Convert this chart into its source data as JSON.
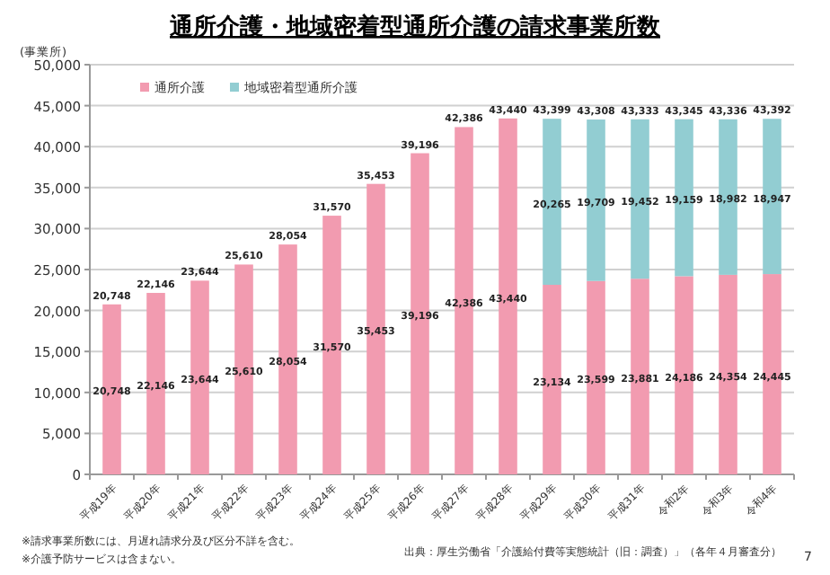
{
  "chart_data": {
    "type": "bar",
    "title": "通所介護・地域密着型通所介護の請求事業所数",
    "ylabel": "(事業所)",
    "categories": [
      "平成19年",
      "平成20年",
      "平成21年",
      "平成22年",
      "平成23年",
      "平成24年",
      "平成25年",
      "平成26年",
      "平成27年",
      "平成28年",
      "平成29年",
      "平成30年",
      "平成31年",
      "令和2年",
      "令和3年",
      "令和4年"
    ],
    "series": [
      {
        "name": "通所介護",
        "color": "#f29bb0",
        "values": [
          20748,
          22146,
          23644,
          25610,
          28054,
          31570,
          35453,
          39196,
          42386,
          43440,
          23134,
          23599,
          23881,
          24186,
          24354,
          24445
        ],
        "value_labels": [
          "20,748",
          "22,146",
          "23,644",
          "25,610",
          "28,054",
          "31,570",
          "35,453",
          "39,196",
          "42,386",
          "43,440",
          "23,134",
          "23,599",
          "23,881",
          "24,186",
          "24,354",
          "24,445"
        ]
      },
      {
        "name": "地域密着型通所介護",
        "color": "#92cdd2",
        "values": [
          null,
          null,
          null,
          null,
          null,
          null,
          null,
          null,
          null,
          null,
          20265,
          19709,
          19452,
          19159,
          18982,
          18947
        ],
        "value_labels": [
          null,
          null,
          null,
          null,
          null,
          null,
          null,
          null,
          null,
          null,
          "20,265",
          "19,709",
          "19,452",
          "19,159",
          "18,982",
          "18,947"
        ]
      }
    ],
    "stacked": true,
    "totals": [
      "20,748",
      "22,146",
      "23,644",
      "25,610",
      "28,054",
      "31,570",
      "35,453",
      "39,196",
      "42,386",
      "43,440",
      "43,399",
      "43,308",
      "43,333",
      "43,345",
      "43,336",
      "43,392"
    ],
    "ylim": [
      0,
      50000
    ],
    "yticks": [
      {
        "value": 0,
        "label": "0"
      },
      {
        "value": 5000,
        "label": "5,000"
      },
      {
        "value": 10000,
        "label": "10,000"
      },
      {
        "value": 15000,
        "label": "15,000"
      },
      {
        "value": 20000,
        "label": "20,000"
      },
      {
        "value": 25000,
        "label": "25,000"
      },
      {
        "value": 30000,
        "label": "30,000"
      },
      {
        "value": 35000,
        "label": "35,000"
      },
      {
        "value": 40000,
        "label": "40,000"
      },
      {
        "value": 45000,
        "label": "45,000"
      },
      {
        "value": 50000,
        "label": "50,000"
      }
    ],
    "grid": "y",
    "legend": "top left",
    "annotations": [
      "※請求事業所数には、月遅れ請求分及び区分不詳を含む。",
      "※介護予防サービスは含まない。",
      "出典：厚生労働省「介護給付費等実態統計（旧：調査）」（各年４月審査分）",
      "7"
    ]
  }
}
